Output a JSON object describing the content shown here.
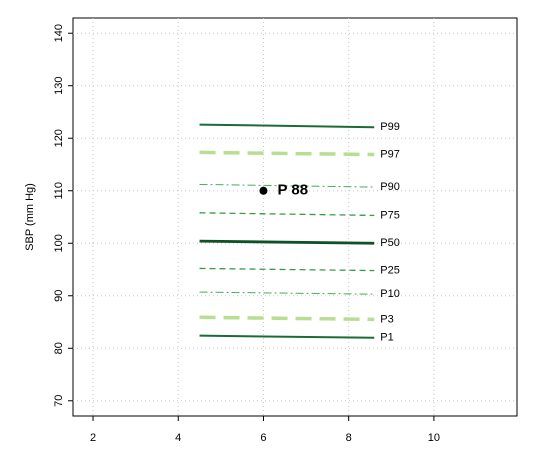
{
  "chart_data": {
    "type": "line",
    "y_label": "SBP (mm Hg)",
    "x": [
      4.5,
      8.6
    ],
    "series": [
      {
        "name": "P99",
        "color": "#1b6b36",
        "width": 2,
        "dash": "none",
        "values": [
          122.6,
          122.1
        ]
      },
      {
        "name": "P97",
        "color": "#b7de92",
        "width": 3.5,
        "dash": "16 8",
        "values": [
          117.3,
          116.9
        ]
      },
      {
        "name": "P90",
        "color": "#4aaa55",
        "width": 1,
        "dash": "8 3 2 3",
        "values": [
          111.2,
          110.7
        ]
      },
      {
        "name": "P75",
        "color": "#3a9a4a",
        "width": 1.3,
        "dash": "6 4",
        "values": [
          105.8,
          105.3
        ]
      },
      {
        "name": "P50",
        "color": "#0d5226",
        "width": 2.8,
        "dash": "none",
        "values": [
          100.4,
          100.0
        ]
      },
      {
        "name": "P25",
        "color": "#3a9a4a",
        "width": 1.3,
        "dash": "6 4",
        "values": [
          95.2,
          94.8
        ]
      },
      {
        "name": "P10",
        "color": "#4aaa55",
        "width": 1,
        "dash": "8 3 2 3",
        "values": [
          90.7,
          90.3
        ]
      },
      {
        "name": "P3",
        "color": "#b7de92",
        "width": 3.5,
        "dash": "16 8",
        "values": [
          85.9,
          85.5
        ]
      },
      {
        "name": "P1",
        "color": "#1b6b36",
        "width": 2,
        "dash": "none",
        "values": [
          82.4,
          82.0
        ]
      }
    ],
    "points": [
      {
        "x": 6,
        "y": 110,
        "label": "P 88",
        "color": "#000000"
      }
    ],
    "xlim": [
      1.53,
      11.95
    ],
    "ylim": [
      67.1,
      142.9
    ],
    "xticks": [
      2,
      4,
      6,
      8,
      10
    ],
    "yticks": [
      70,
      80,
      90,
      100,
      110,
      120,
      130,
      140
    ],
    "grid": true
  }
}
